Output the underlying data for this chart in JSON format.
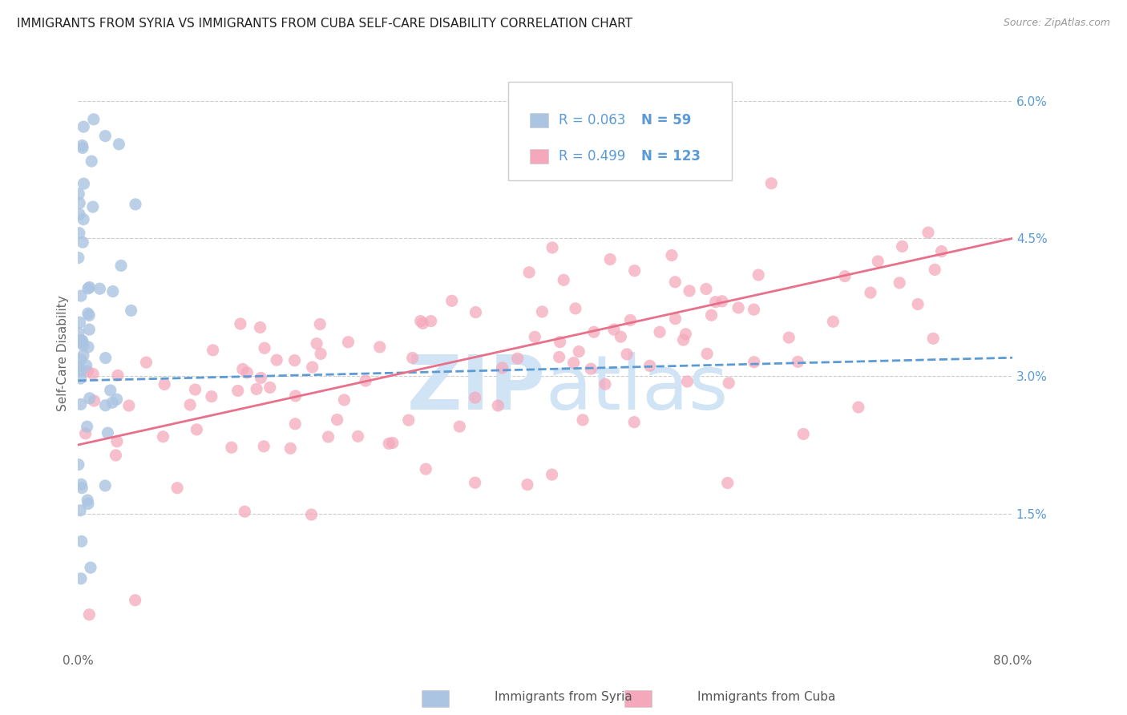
{
  "title": "IMMIGRANTS FROM SYRIA VS IMMIGRANTS FROM CUBA SELF-CARE DISABILITY CORRELATION CHART",
  "source": "Source: ZipAtlas.com",
  "ylabel": "Self-Care Disability",
  "xlim": [
    0.0,
    0.8
  ],
  "ylim": [
    0.0,
    0.065
  ],
  "xtick_positions": [
    0.0,
    0.1,
    0.2,
    0.3,
    0.4,
    0.5,
    0.6,
    0.7,
    0.8
  ],
  "xtick_labels": [
    "0.0%",
    "",
    "",
    "",
    "",
    "",
    "",
    "",
    "80.0%"
  ],
  "ytick_positions": [
    0.015,
    0.03,
    0.045,
    0.06
  ],
  "ytick_labels": [
    "1.5%",
    "3.0%",
    "4.5%",
    "6.0%"
  ],
  "syria_color": "#aac4e2",
  "cuba_color": "#f5a8bc",
  "syria_line_color": "#5b9bd5",
  "cuba_line_color": "#e8708a",
  "watermark_color": "#d0e4f5",
  "legend_R_syria": "0.063",
  "legend_N_syria": "59",
  "legend_R_cuba": "0.499",
  "legend_N_cuba": "123",
  "syria_trend_x": [
    0.0,
    0.8
  ],
  "syria_trend_y": [
    0.0295,
    0.032
  ],
  "cuba_trend_x": [
    0.0,
    0.8
  ],
  "cuba_trend_y": [
    0.0225,
    0.045
  ],
  "title_fontsize": 11,
  "source_fontsize": 9,
  "tick_fontsize": 11,
  "legend_fontsize": 12
}
